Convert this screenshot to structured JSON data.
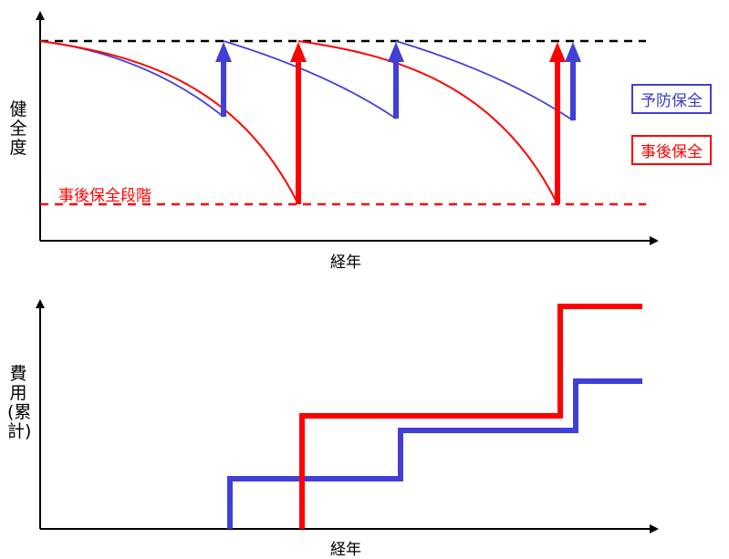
{
  "top_panel": {
    "y_axis_label": "健全度",
    "x_axis_label": "経年",
    "threshold_label": "事後保全段階",
    "legend": {
      "preventive": "予防保全",
      "corrective": "事後保全"
    }
  },
  "bottom_panel": {
    "y_axis_label": "費用(累計)",
    "x_axis_label": "経年"
  },
  "colors": {
    "preventive": "#4040d8",
    "corrective": "#ff0000",
    "axis": "#000000"
  }
}
